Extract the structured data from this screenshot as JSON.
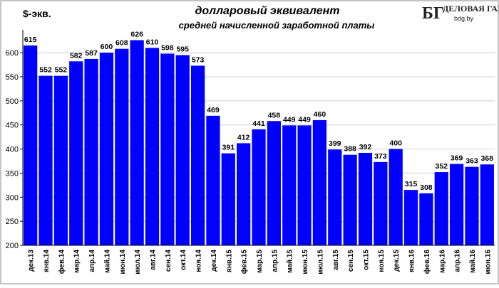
{
  "chart_data": {
    "type": "bar",
    "title": "долларовый эквивалент",
    "subtitle": "средней начисленной заработной платы",
    "ylabel": "$-экв.",
    "xlabel": "",
    "ylim": [
      200,
      640
    ],
    "yticks": [
      200,
      250,
      300,
      350,
      400,
      450,
      500,
      550,
      600
    ],
    "grid": true,
    "bar_color": "#0000ff",
    "categories": [
      "дек.13",
      "янв.14",
      "фев.14",
      "мар.14",
      "апр.14",
      "май.14",
      "июн.14",
      "июл.14",
      "авг.14",
      "сен.14",
      "окт.14",
      "ноя.14",
      "дек.14",
      "янв.15",
      "фев.15",
      "мар.15",
      "апр.15",
      "май.15",
      "июн.15",
      "июл.15",
      "авг.15",
      "сен.15",
      "окт.15",
      "ноя.15",
      "дек.15",
      "янв.16",
      "фев.16",
      "мар.16",
      "апр.16",
      "май.16",
      "июн.16"
    ],
    "values": [
      615,
      552,
      552,
      582,
      587,
      600,
      608,
      626,
      610,
      598,
      595,
      573,
      469,
      391,
      412,
      441,
      458,
      449,
      449,
      460,
      399,
      388,
      392,
      373,
      400,
      315,
      308,
      352,
      369,
      363,
      368
    ],
    "data_labels": [
      "615",
      "552",
      "552",
      "582",
      "587",
      "600",
      "608",
      "626",
      "610",
      "598",
      "595",
      "573",
      "469",
      "391",
      "412",
      "441",
      "458",
      "449",
      "449",
      "460",
      "399",
      "388",
      "392",
      "373",
      "400",
      "315",
      "308",
      "352",
      "369",
      "363",
      "368"
    ]
  },
  "logo": {
    "monogram": "БГ",
    "name": "ДЕЛОВАЯ ГАЗЕТА",
    "site": "bdg.by"
  }
}
